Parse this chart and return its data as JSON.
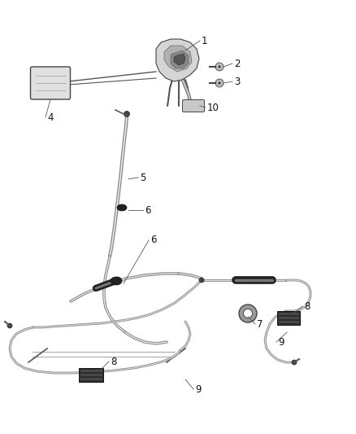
{
  "background_color": "#ffffff",
  "figsize": [
    4.38,
    5.33
  ],
  "dpi": 100,
  "line_gray": "#888888",
  "line_dark": "#333333",
  "line_med": "#666666",
  "sheath_color": "#222222",
  "clip_color": "#111111"
}
